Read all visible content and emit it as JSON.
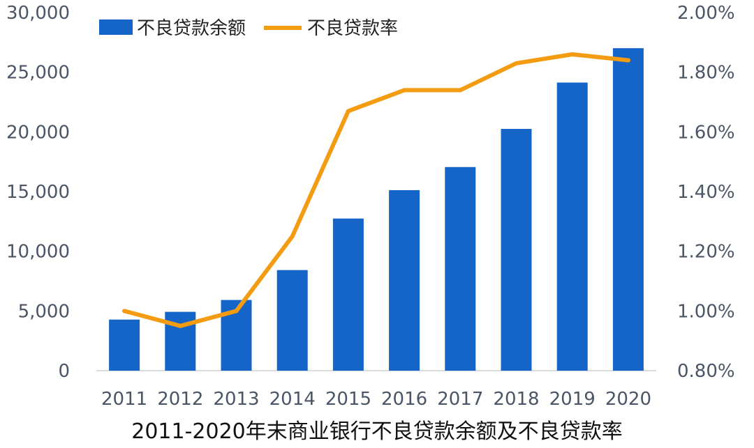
{
  "caption": "2011-2020年末商业银行不良贷款余额及不良贷款率",
  "chart_data": {
    "type": "bar",
    "categories": [
      "2011",
      "2012",
      "2013",
      "2014",
      "2015",
      "2016",
      "2017",
      "2018",
      "2019",
      "2020"
    ],
    "series": [
      {
        "name": "不良贷款余额",
        "kind": "bar",
        "axis": "left",
        "color": "#1565c8",
        "values": [
          4279,
          4929,
          5921,
          8426,
          12744,
          15122,
          17057,
          20254,
          24135,
          27015
        ]
      },
      {
        "name": "不良贷款率",
        "kind": "line",
        "axis": "right",
        "color": "#f39c12",
        "values": [
          1.0,
          0.95,
          1.0,
          1.25,
          1.67,
          1.74,
          1.74,
          1.83,
          1.86,
          1.84
        ]
      }
    ],
    "y_left": {
      "min": 0,
      "max": 30000,
      "ticks": [
        "0",
        "5,000",
        "10,000",
        "15,000",
        "20,000",
        "25,000",
        "30,000"
      ]
    },
    "y_right": {
      "min": 0.8,
      "max": 2.0,
      "ticks": [
        "0.80%",
        "1.00%",
        "1.20%",
        "1.40%",
        "1.60%",
        "1.80%",
        "2.00%"
      ]
    },
    "legend": "top-left",
    "grid": false
  }
}
